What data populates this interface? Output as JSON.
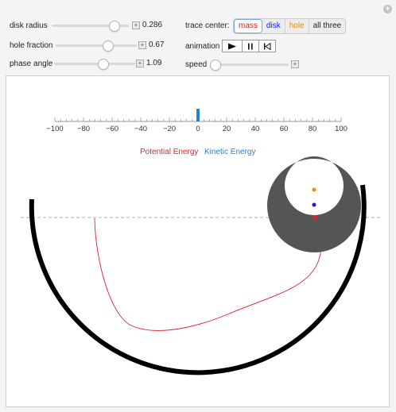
{
  "controls": {
    "disk_radius": {
      "label": "disk radius",
      "value": "0.286",
      "fraction": 0.87
    },
    "hole_fraction": {
      "label": "hole fraction",
      "value": "0.67",
      "fraction": 0.67
    },
    "phase_angle": {
      "label": "phase angle",
      "value": "1.09",
      "fraction": 0.62
    },
    "trace_center": {
      "label": "trace center:",
      "options": [
        {
          "label": "mass",
          "color": "#e0202a",
          "selected": true
        },
        {
          "label": "disk",
          "color": "#1a1ae6",
          "selected": false
        },
        {
          "label": "hole",
          "color": "#f08c00",
          "selected": false
        },
        {
          "label": "all three",
          "color": "#222222",
          "selected": false
        }
      ]
    },
    "animation": {
      "label": "animation"
    },
    "speed": {
      "label": "speed",
      "fraction": 0.0
    }
  },
  "plot": {
    "energy_bar": {
      "ticks": [
        "−100",
        "−80",
        "−60",
        "−40",
        "−20",
        "0",
        "20",
        "40",
        "60",
        "80",
        "100"
      ],
      "tick_values": [
        -100,
        -80,
        -60,
        -40,
        -20,
        0,
        20,
        40,
        60,
        80,
        100
      ],
      "range": [
        -100,
        100
      ],
      "kinetic_value": 0
    },
    "legend": {
      "potential": {
        "label": "Potential Energy",
        "color": "#d6282a"
      },
      "kinetic": {
        "label": "Kinetic Energy",
        "color": "#2f7fc8"
      }
    },
    "colors": {
      "track": "#000000",
      "disk": "#555555",
      "trace": "#e0202a",
      "mass_dot": "#e0202a",
      "disk_dot": "#1a1ae6",
      "hole_dot": "#f08c00",
      "reference_line": "#999999"
    }
  }
}
